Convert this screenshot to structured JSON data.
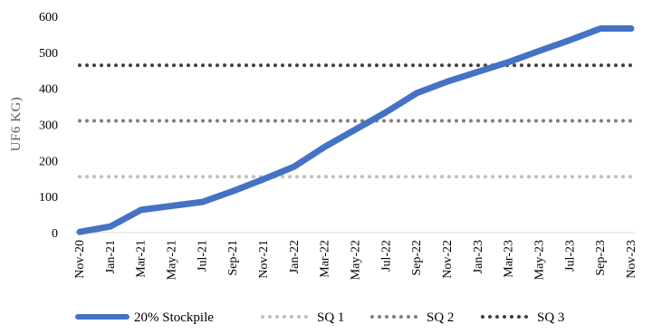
{
  "chart_data": {
    "type": "line",
    "title": "",
    "xlabel": "",
    "ylabel": "UF6 KG)",
    "ylim": [
      0,
      600
    ],
    "yticks": [
      0,
      100,
      200,
      300,
      400,
      500,
      600
    ],
    "grid": false,
    "legend_position": "bottom",
    "categories": [
      "Nov-20",
      "Jan-21",
      "Mar-21",
      "May-21",
      "Jul-21",
      "Sep-21",
      "Nov-21",
      "Jan-22",
      "Mar-22",
      "May-22",
      "Jul-22",
      "Sep-22",
      "Nov-22",
      "Jan-23",
      "Mar-23",
      "May-23",
      "Jul-23",
      "Sep-23",
      "Nov-23"
    ],
    "series": [
      {
        "name": "20% Stockpile",
        "color": "#4472C4",
        "style": "solid",
        "values": [
          2,
          17,
          63,
          74,
          85,
          115,
          148,
          183,
          238,
          286,
          334,
          387,
          419,
          446,
          473,
          504,
          534,
          566,
          566
        ]
      },
      {
        "name": "SQ 1",
        "color": "#BFBFBF",
        "style": "dotted",
        "values": [
          155,
          155,
          155,
          155,
          155,
          155,
          155,
          155,
          155,
          155,
          155,
          155,
          155,
          155,
          155,
          155,
          155,
          155,
          155
        ]
      },
      {
        "name": "SQ 2",
        "color": "#7F7F7F",
        "style": "dotted",
        "values": [
          310,
          310,
          310,
          310,
          310,
          310,
          310,
          310,
          310,
          310,
          310,
          310,
          310,
          310,
          310,
          310,
          310,
          310,
          310
        ]
      },
      {
        "name": "SQ 3",
        "color": "#404040",
        "style": "dotted",
        "values": [
          464,
          464,
          464,
          464,
          464,
          464,
          464,
          464,
          464,
          464,
          464,
          464,
          464,
          464,
          464,
          464,
          464,
          464,
          464
        ]
      }
    ]
  }
}
